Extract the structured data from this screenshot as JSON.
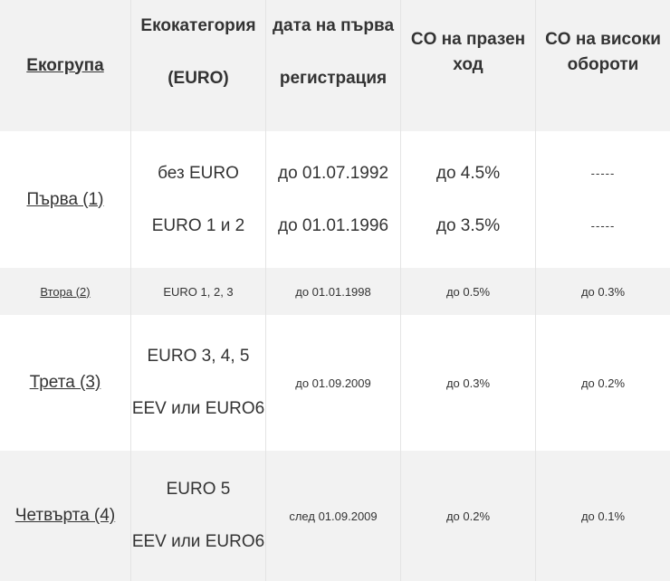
{
  "header": {
    "col1": "Екогрупа",
    "col2_line1": "Екокатегория",
    "col2_line2": "(EURO)",
    "col3_line1": "дата на първа",
    "col3_line2": "регистрация",
    "col4_line1": "CO на празен",
    "col4_line2": "ход",
    "col5_line1": "CO на високи",
    "col5_line2": "обороти"
  },
  "rows": [
    {
      "group": "Първа (1)",
      "categories": [
        "без EURO",
        "EURO 1 и 2"
      ],
      "dates": [
        "до 01.07.1992",
        "до 01.01.1996"
      ],
      "co_idle": [
        "до 4.5%",
        "до 3.5%"
      ],
      "co_high": [
        "-----",
        "-----"
      ]
    },
    {
      "group": "Втора (2)",
      "category": "EURO 1, 2, 3",
      "date": "до 01.01.1998",
      "co_idle": "до 0.5%",
      "co_high": "до 0.3%"
    },
    {
      "group": "Трета (3)",
      "categories": [
        "EURO 3, 4, 5",
        "EEV или EURO6"
      ],
      "date": "до 01.09.2009",
      "co_idle": "до 0.3%",
      "co_high": "до 0.2%"
    },
    {
      "group": "Четвърта (4)",
      "categories": [
        "EURO 5",
        "EEV или EURO6"
      ],
      "date": "след 01.09.2009",
      "co_idle": "до 0.2%",
      "co_high": "до 0.1%"
    }
  ]
}
